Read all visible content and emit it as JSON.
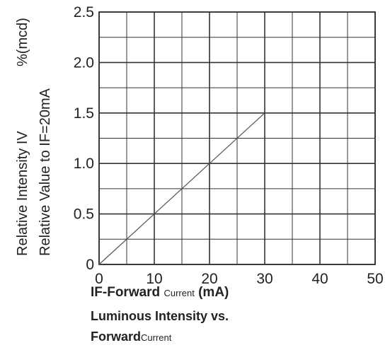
{
  "chart_data": {
    "type": "line",
    "x": [
      0,
      30
    ],
    "series": [
      {
        "values": [
          0,
          1.5
        ]
      }
    ],
    "xlim": [
      0,
      50
    ],
    "ylim": [
      0,
      2.5
    ],
    "x_ticks": [
      "0",
      "10",
      "20",
      "30",
      "40",
      "50"
    ],
    "y_ticks": [
      "0",
      "0.5",
      "1.0",
      "1.5",
      "2.0",
      "2.5"
    ],
    "x_minor_step": 5,
    "y_minor_step": 0.25,
    "grid": true,
    "ylabel_line1": "Relative Intensity IV",
    "ylabel_unit": "%(mcd)",
    "ylabel_line2": "Relative Value to IF=20mA",
    "xlabel_main_1": "IF-Forward",
    "xlabel_small": "Current",
    "xlabel_main_2": "(mA)",
    "title_line1": "Luminous Intensity vs.",
    "title_line2_main": "Forward",
    "title_line2_small": "Current",
    "colors": {
      "grid": "#333333",
      "line": "#555555",
      "text": "#222222"
    }
  }
}
